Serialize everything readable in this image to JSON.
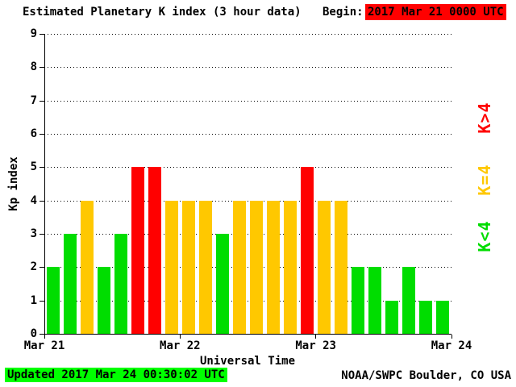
{
  "header": {
    "title": "Estimated Planetary K index (3 hour data)",
    "begin_label": "Begin:",
    "begin_value": "2017 Mar 21 0000 UTC"
  },
  "footer": {
    "updated": "Updated 2017 Mar 24 00:30:02 UTC",
    "credit": "NOAA/SWPC Boulder, CO USA"
  },
  "colors": {
    "green": "#00dd00",
    "yellow": "#ffc800",
    "red": "#ff0000",
    "begin_bg": "#ff0000",
    "updated_bg": "#00ff00",
    "axis": "#000000"
  },
  "legend": [
    {
      "label": "K>4",
      "color_key": "red"
    },
    {
      "label": "K=4",
      "color_key": "yellow"
    },
    {
      "label": "K<4",
      "color_key": "green"
    }
  ],
  "chart_data": {
    "type": "bar",
    "title": "Estimated Planetary K index (3 hour data)",
    "begin": "2017 Mar 21 0000 UTC",
    "xlabel": "Universal Time",
    "ylabel": "Kp index",
    "ylim": [
      0,
      9
    ],
    "y_ticks": [
      0,
      1,
      2,
      3,
      4,
      5,
      6,
      7,
      8,
      9
    ],
    "x_tick_labels": [
      "Mar 21",
      "Mar 22",
      "Mar 23",
      "Mar 24"
    ],
    "bar_interval_hours": 3,
    "values": [
      2,
      3,
      4,
      2,
      3,
      5,
      5,
      4,
      4,
      4,
      3,
      4,
      4,
      4,
      4,
      5,
      4,
      4,
      2,
      2,
      1,
      2,
      1,
      1
    ],
    "color_rule": {
      "below_4": "green",
      "equal_4": "yellow",
      "above_4": "red"
    },
    "grid": "horizontal dotted",
    "legend_position": "right"
  }
}
